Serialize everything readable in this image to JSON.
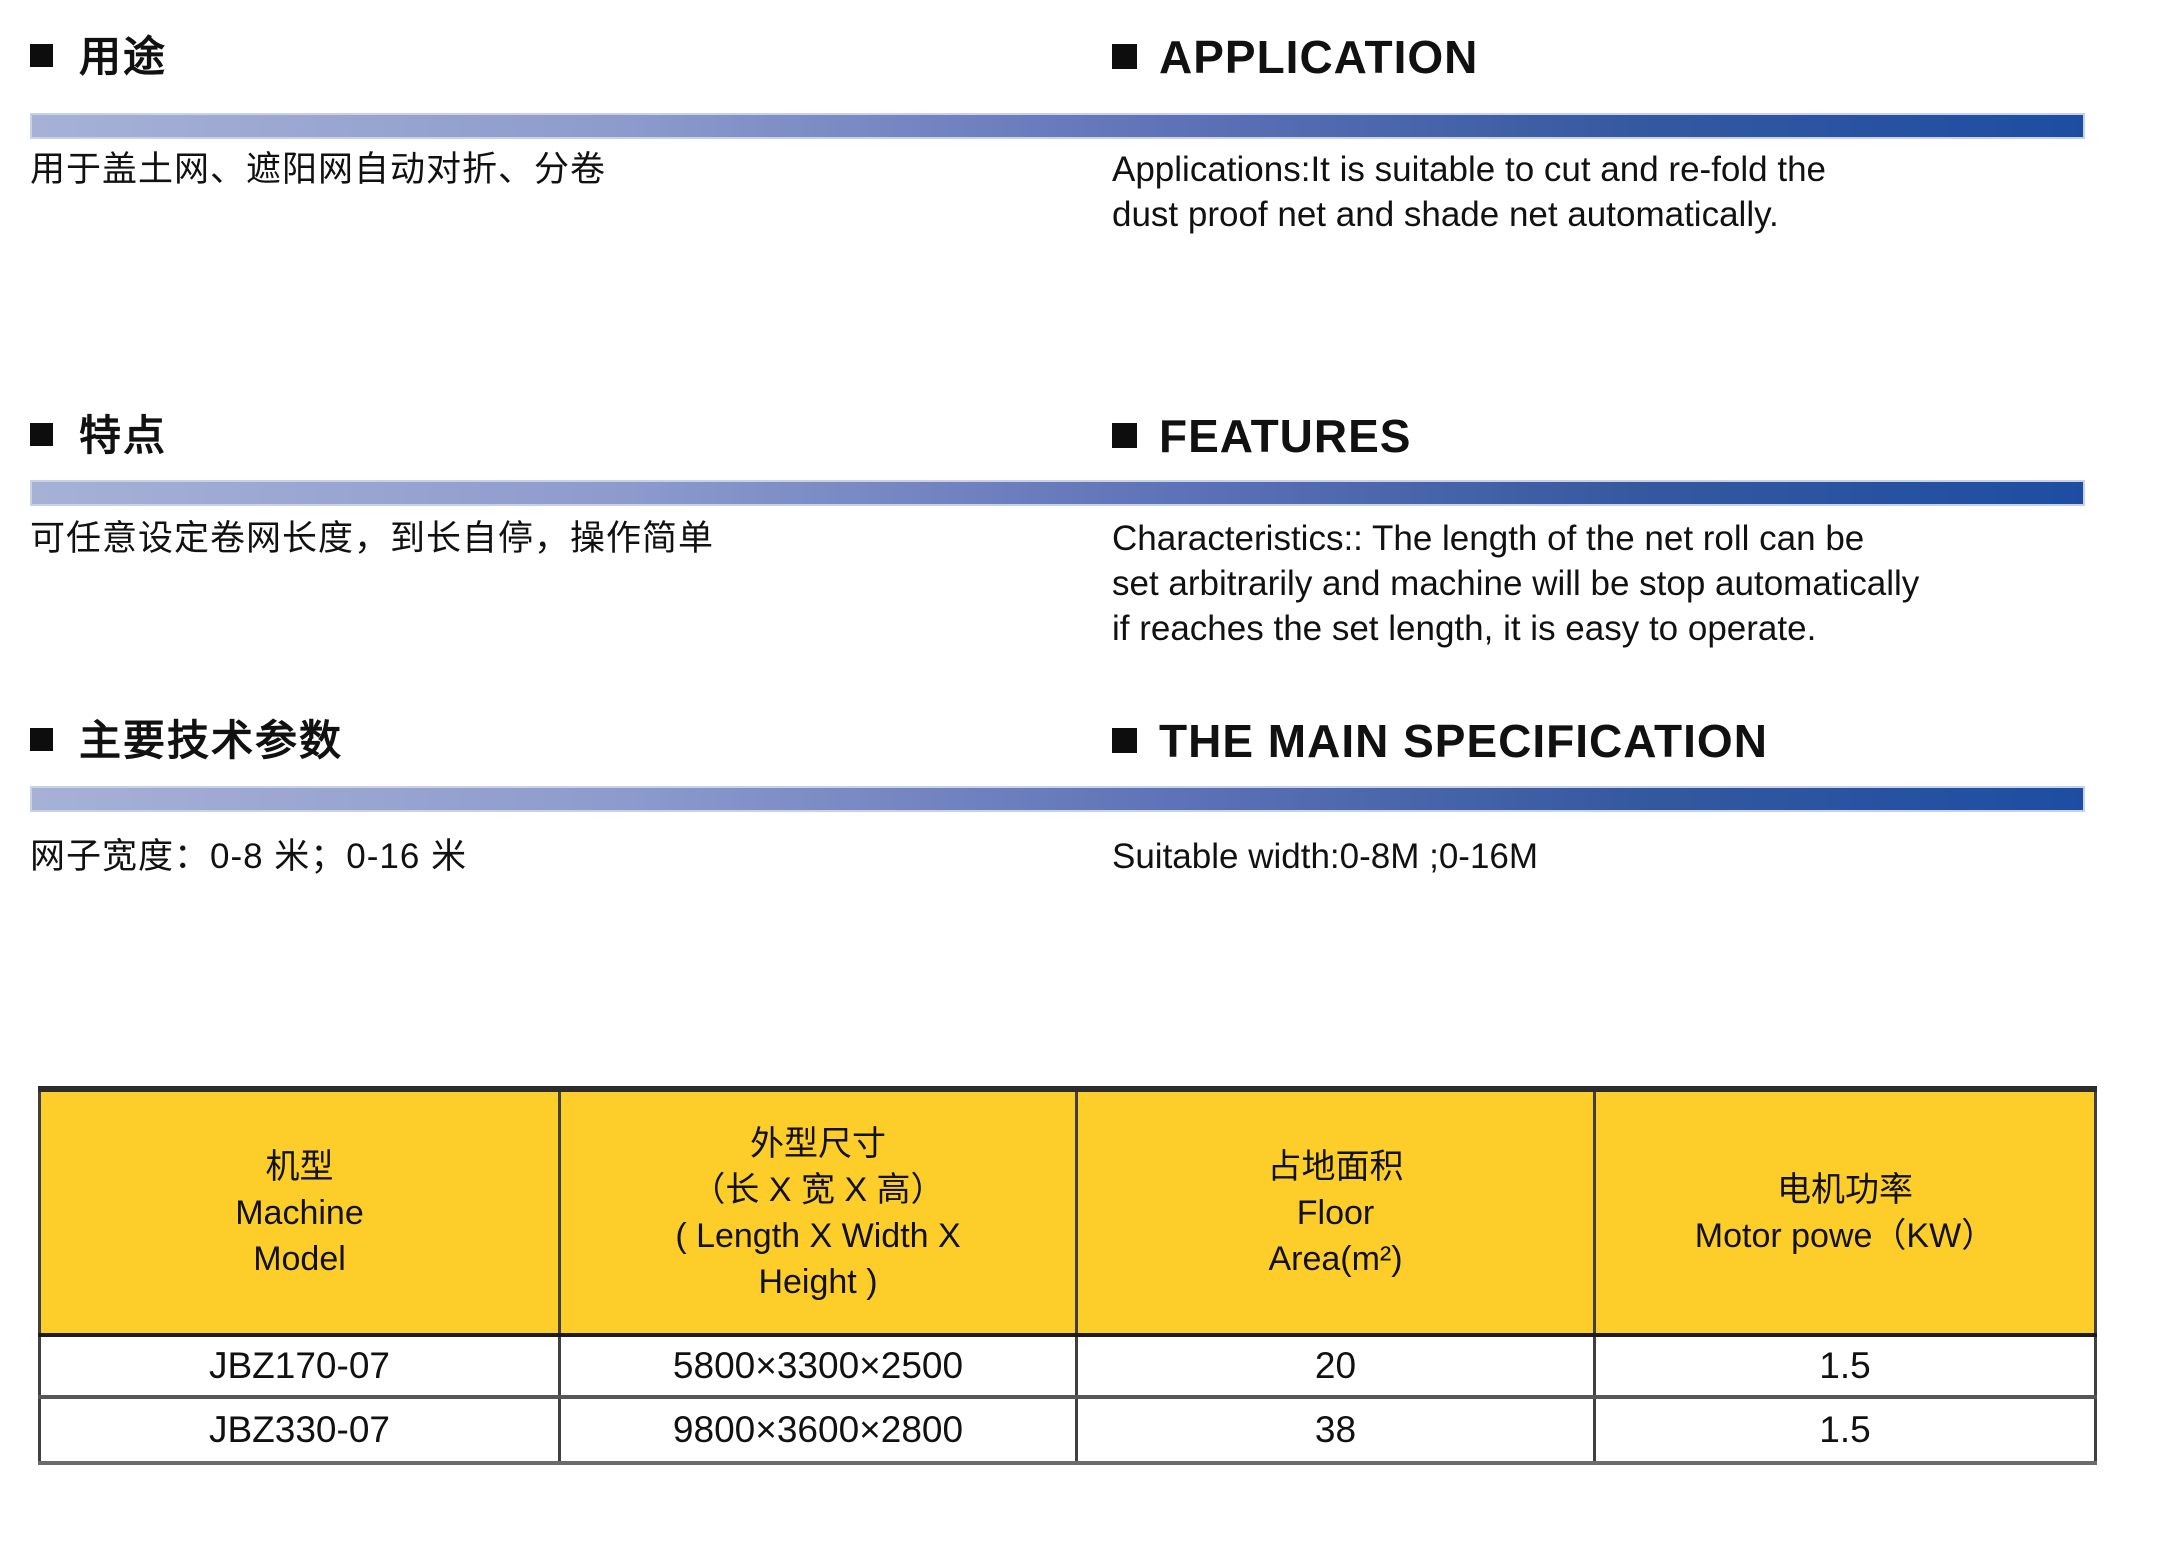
{
  "colors": {
    "bar_start": "#a6b1d6",
    "bar_mid": "#5f73b8",
    "bar_end": "#1d4da3",
    "bar_border": "#c9d1e8",
    "table_header_bg": "#fdcd2a",
    "table_border": "#404040",
    "text": "#111111",
    "bullet": "#0d0d0d"
  },
  "icons": {
    "section_bullet": "square-bullet-icon"
  },
  "sections": [
    {
      "zh": {
        "title": "用途",
        "body": [
          "用于盖土网、遮阳网自动对折、分卷"
        ]
      },
      "en": {
        "title": "APPLICATION",
        "body": [
          "Applications:It is suitable to cut and re-fold the",
          "dust proof net and shade net automatically."
        ]
      }
    },
    {
      "zh": {
        "title": "特点",
        "body": [
          "可任意设定卷网长度，到长自停，操作简单"
        ]
      },
      "en": {
        "title": "FEATURES",
        "body": [
          "Characteristics:: The length of the net roll can be",
          "set arbitrarily and machine will be stop automatically",
          "if reaches the set length, it is easy to operate."
        ]
      }
    },
    {
      "zh": {
        "title": "主要技术参数",
        "body": [
          "网子宽度：0-8 米；0-16 米"
        ]
      },
      "en": {
        "title": "THE MAIN SPECIFICATION",
        "body": [
          "Suitable width:0-8M ;0-16M"
        ]
      }
    }
  ],
  "table": {
    "headers": [
      [
        "机型",
        "Machine",
        "Model"
      ],
      [
        "外型尺寸",
        "（长 X 宽 X 高）",
        "( Length X Width X",
        "Height )"
      ],
      [
        "占地面积",
        "Floor",
        "Area(m²)"
      ],
      [
        "电机功率",
        "Motor powe（KW）"
      ]
    ],
    "rows": [
      [
        "JBZ170-07",
        "5800×3300×2500",
        "20",
        "1.5"
      ],
      [
        "JBZ330-07",
        "9800×3600×2800",
        "38",
        "1.5"
      ]
    ]
  }
}
